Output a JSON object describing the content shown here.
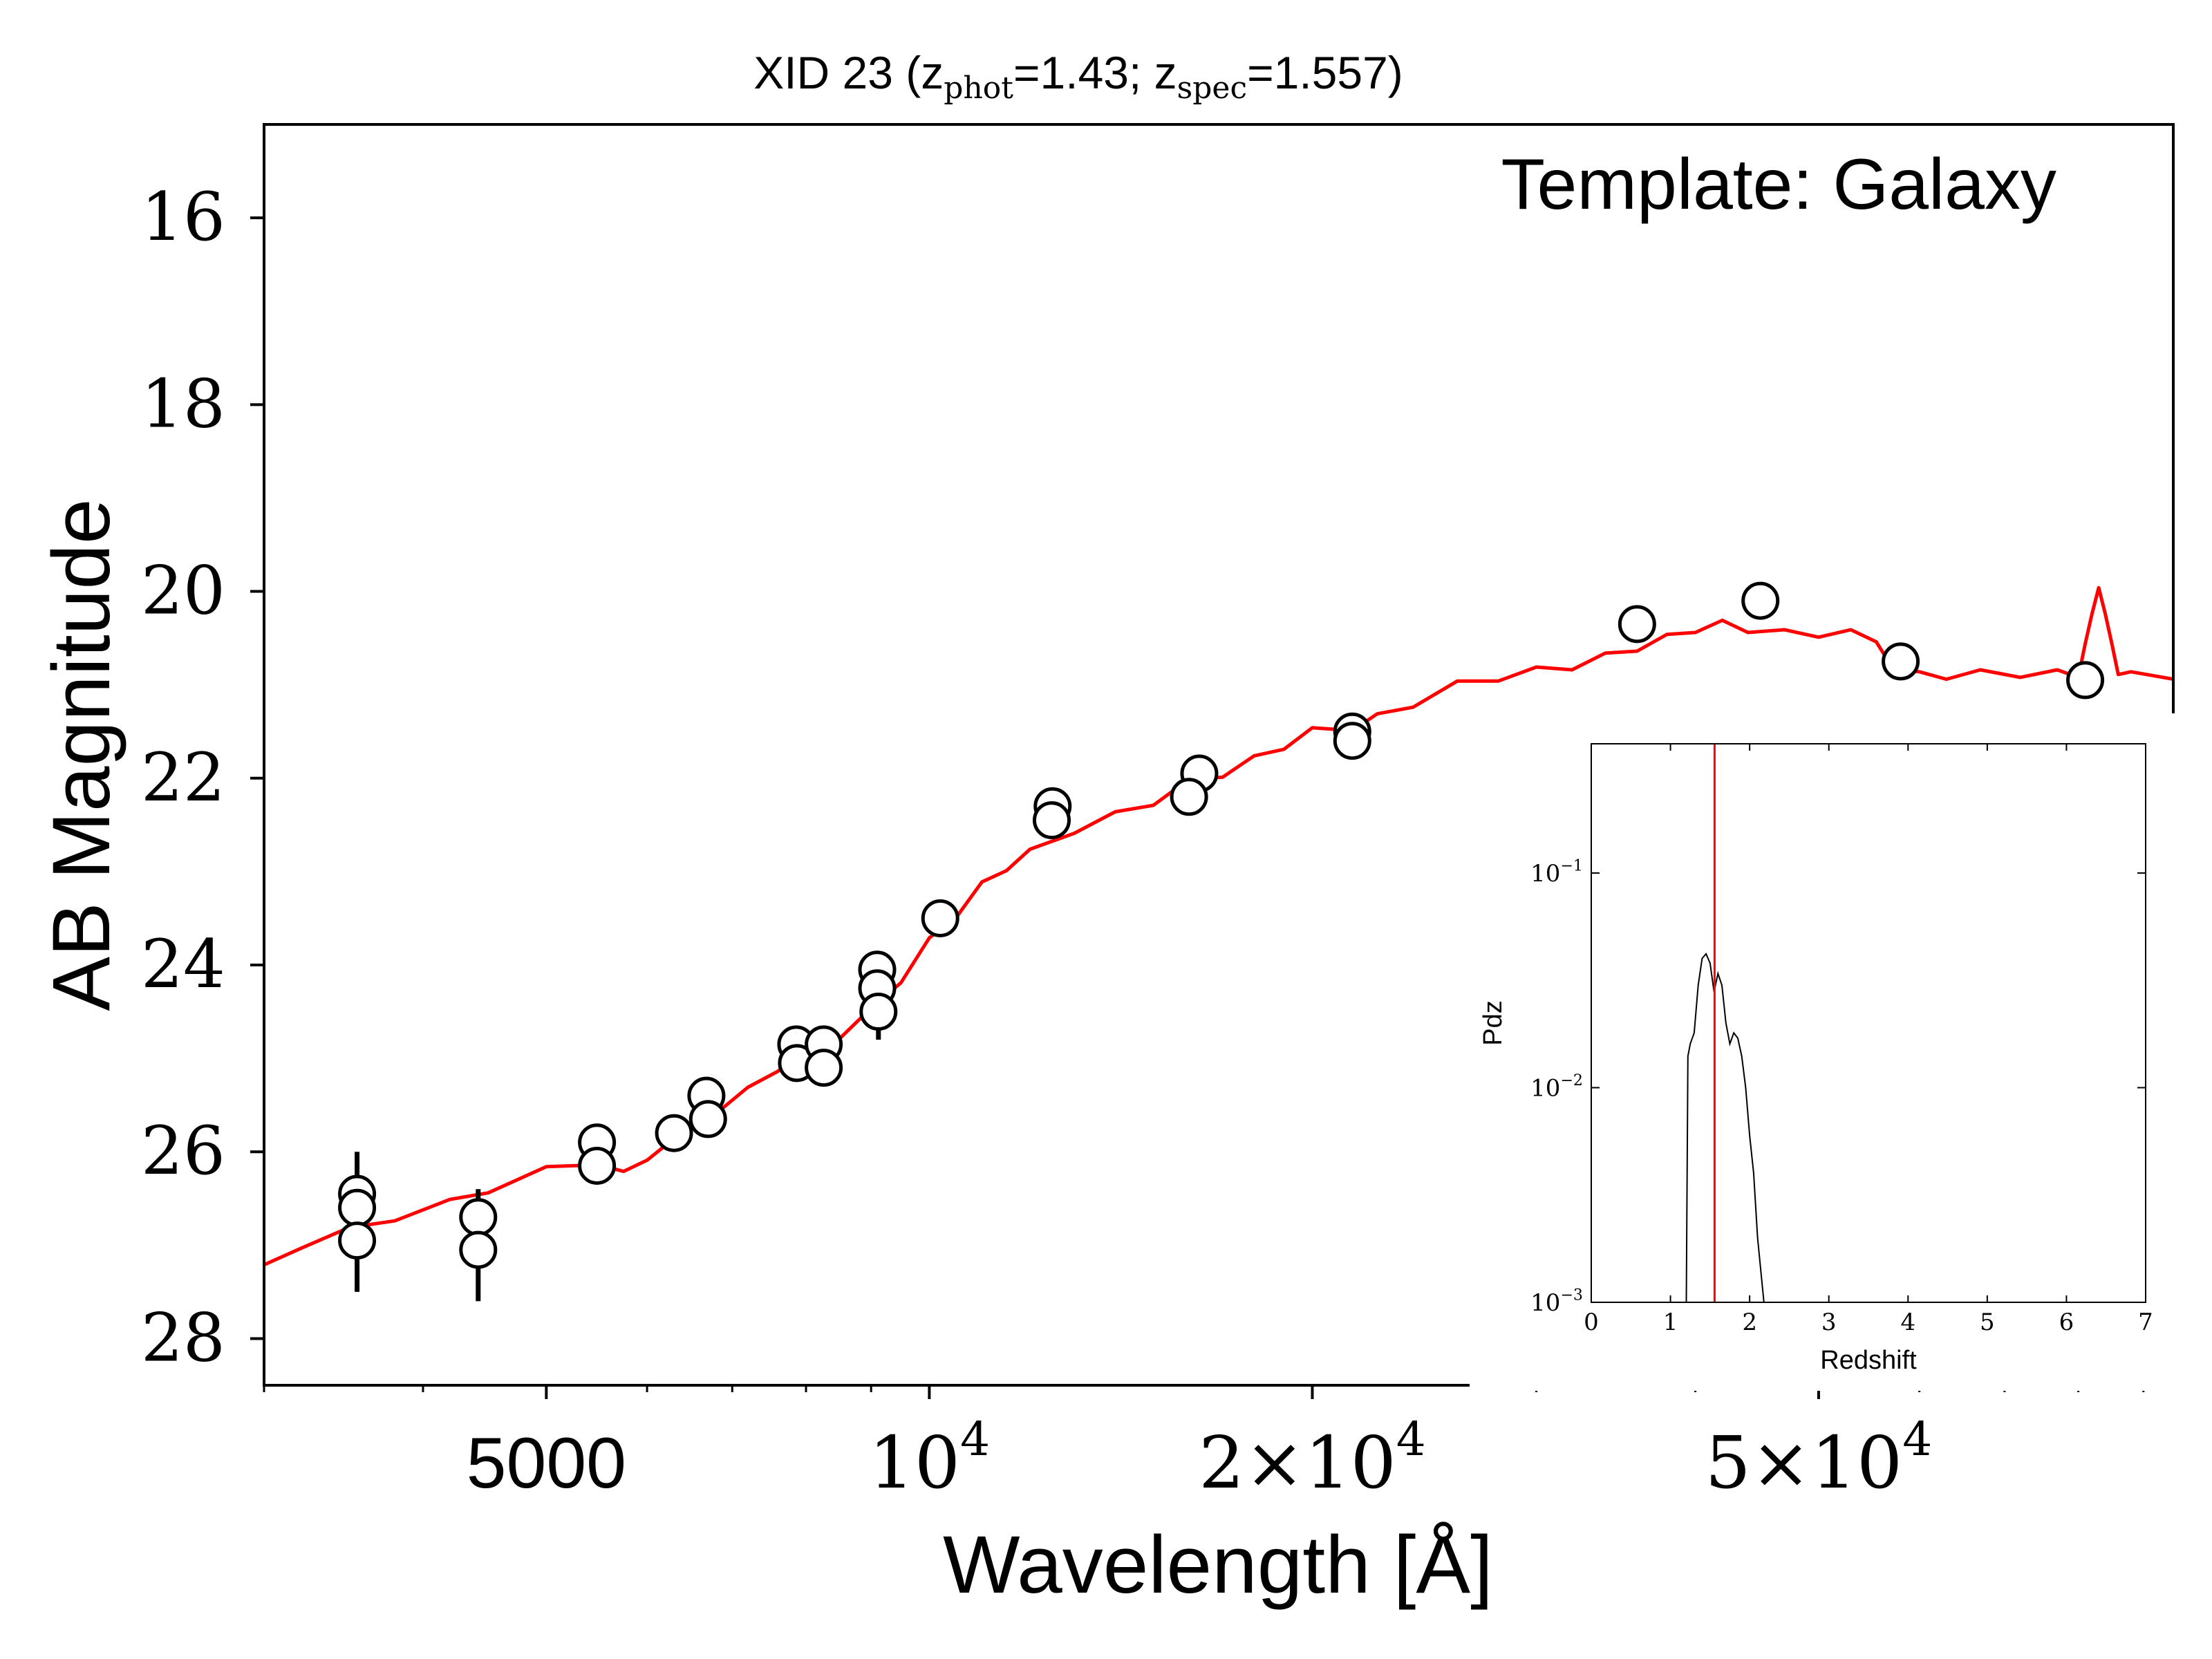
{
  "chart_data": [
    {
      "type": "scatter",
      "title": {
        "prefix": "XID 23 (z",
        "sub1": "phot",
        "mid": "=1.43; z",
        "sub2": "spec",
        "suffix": "=1.557)"
      },
      "annotation": "Template: Galaxy",
      "xlabel": "Wavelength [Å]",
      "ylabel": "AB Magnitude",
      "xscale": "log",
      "xlim": [
        3000,
        95000
      ],
      "ylim": [
        28.5,
        15.0
      ],
      "y_inverted": true,
      "yticks": [
        "16",
        "18",
        "20",
        "22",
        "24",
        "26",
        "28"
      ],
      "xticks": [
        {
          "value": 5000,
          "label": "5000"
        },
        {
          "value": 10000,
          "base": "10",
          "exp": "4"
        },
        {
          "value": 20000,
          "pre": "2×",
          "base": "10",
          "exp": "4"
        },
        {
          "value": 50000,
          "pre": "5×",
          "base": "10",
          "exp": "4"
        }
      ],
      "grid": false,
      "series": [
        {
          "kind": "photometry",
          "color": "#000000",
          "points": [
            {
              "x": 3550,
              "y": 26.45,
              "err": 0.45
            },
            {
              "x": 3550,
              "y": 26.6,
              "err": 0.3
            },
            {
              "x": 3550,
              "y": 26.95,
              "err": 0.55
            },
            {
              "x": 4420,
              "y": 26.7,
              "err": 0.3
            },
            {
              "x": 4420,
              "y": 27.05,
              "err": 0.55
            },
            {
              "x": 5480,
              "y": 25.9,
              "err": 0.15
            },
            {
              "x": 5480,
              "y": 26.15,
              "err": 0.15
            },
            {
              "x": 6300,
              "y": 25.8,
              "err": 0.1
            },
            {
              "x": 6680,
              "y": 25.4,
              "err": 0.1
            },
            {
              "x": 6700,
              "y": 25.65,
              "err": 0.1
            },
            {
              "x": 7860,
              "y": 24.85,
              "err": 0.1
            },
            {
              "x": 7870,
              "y": 25.05,
              "err": 0.1
            },
            {
              "x": 8260,
              "y": 24.85,
              "err": 0.1
            },
            {
              "x": 8260,
              "y": 25.1,
              "err": 0.1
            },
            {
              "x": 9100,
              "y": 24.05,
              "err": 0.15
            },
            {
              "x": 9100,
              "y": 24.25,
              "err": 0.15
            },
            {
              "x": 9120,
              "y": 24.5,
              "err": 0.3
            },
            {
              "x": 10200,
              "y": 23.5,
              "err": 0.05
            },
            {
              "x": 12500,
              "y": 22.3,
              "err": 0.05
            },
            {
              "x": 12480,
              "y": 22.45,
              "err": 0.05
            },
            {
              "x": 16300,
              "y": 21.95,
              "err": 0.05
            },
            {
              "x": 16000,
              "y": 22.2,
              "err": 0.05
            },
            {
              "x": 21500,
              "y": 21.5,
              "err": 0.05
            },
            {
              "x": 21500,
              "y": 21.6,
              "err": 0.05
            },
            {
              "x": 36000,
              "y": 20.35,
              "err": 0.05
            },
            {
              "x": 45000,
              "y": 20.1,
              "err": 0.05
            },
            {
              "x": 58000,
              "y": 20.75,
              "err": 0.05
            },
            {
              "x": 81000,
              "y": 20.95,
              "err": 0.05
            }
          ]
        },
        {
          "kind": "template",
          "color": "#ff0000",
          "points": [
            [
              3000,
              27.25
            ],
            [
              3200,
              27.0
            ],
            [
              3500,
              26.85
            ],
            [
              3800,
              26.7
            ],
            [
              4200,
              26.55
            ],
            [
              4500,
              26.4
            ],
            [
              5000,
              26.2
            ],
            [
              5500,
              26.1
            ],
            [
              5750,
              26.25
            ],
            [
              6000,
              26.05
            ],
            [
              6500,
              25.75
            ],
            [
              6800,
              25.55
            ],
            [
              7200,
              25.35
            ],
            [
              7600,
              25.1
            ],
            [
              8000,
              24.95
            ],
            [
              8500,
              24.75
            ],
            [
              9000,
              24.5
            ],
            [
              9500,
              24.15
            ],
            [
              10000,
              23.75
            ],
            [
              10500,
              23.45
            ],
            [
              11000,
              23.15
            ],
            [
              11500,
              22.95
            ],
            [
              12000,
              22.8
            ],
            [
              13000,
              22.55
            ],
            [
              14000,
              22.4
            ],
            [
              15000,
              22.25
            ],
            [
              16000,
              22.05
            ],
            [
              17000,
              21.95
            ],
            [
              18000,
              21.8
            ],
            [
              19000,
              21.65
            ],
            [
              20000,
              21.5
            ],
            [
              21500,
              21.45
            ],
            [
              22500,
              21.35
            ],
            [
              24000,
              21.2
            ],
            [
              26000,
              21.0
            ],
            [
              28000,
              20.92
            ],
            [
              30000,
              20.85
            ],
            [
              32000,
              20.8
            ],
            [
              34000,
              20.7
            ],
            [
              36000,
              20.6
            ],
            [
              38000,
              20.5
            ],
            [
              40000,
              20.4
            ],
            [
              42000,
              20.35
            ],
            [
              44000,
              20.4
            ],
            [
              47000,
              20.45
            ],
            [
              50000,
              20.45
            ],
            [
              53000,
              20.45
            ],
            [
              55500,
              20.5
            ],
            [
              56500,
              20.75
            ],
            [
              58000,
              20.8
            ],
            [
              60000,
              20.9
            ],
            [
              63000,
              20.9
            ],
            [
              67000,
              20.88
            ],
            [
              72000,
              20.88
            ],
            [
              77000,
              20.88
            ],
            [
              80000,
              20.88
            ],
            [
              81000,
              20.6
            ],
            [
              82000,
              20.2
            ],
            [
              83000,
              20.0
            ],
            [
              84000,
              20.2
            ],
            [
              85000,
              20.6
            ],
            [
              86000,
              20.85
            ],
            [
              88000,
              20.9
            ],
            [
              95000,
              20.9
            ]
          ]
        }
      ]
    },
    {
      "type": "line",
      "role": "inset",
      "xlabel": "Redshift",
      "ylabel": "Pdz",
      "xlim": [
        0,
        7
      ],
      "yscale": "log",
      "ylim": [
        0.001,
        0.4
      ],
      "xticks": [
        "0",
        "1",
        "2",
        "3",
        "4",
        "5",
        "6",
        "7"
      ],
      "yticks": [
        {
          "value": 0.1,
          "base": "10",
          "exp": "−1"
        },
        {
          "value": 0.01,
          "base": "10",
          "exp": "−2"
        },
        {
          "value": 0.001,
          "base": "10",
          "exp": "−3"
        }
      ],
      "vline": {
        "x": 1.557,
        "color": "#ff0000"
      },
      "series": [
        {
          "color": "#000000",
          "points": [
            [
              1.2,
              0.001
            ],
            [
              1.22,
              0.014
            ],
            [
              1.25,
              0.016
            ],
            [
              1.3,
              0.018
            ],
            [
              1.35,
              0.03
            ],
            [
              1.4,
              0.04
            ],
            [
              1.45,
              0.042
            ],
            [
              1.5,
              0.038
            ],
            [
              1.55,
              0.028
            ],
            [
              1.6,
              0.034
            ],
            [
              1.65,
              0.03
            ],
            [
              1.7,
              0.02
            ],
            [
              1.75,
              0.016
            ],
            [
              1.8,
              0.018
            ],
            [
              1.85,
              0.017
            ],
            [
              1.9,
              0.014
            ],
            [
              1.95,
              0.01
            ],
            [
              2.0,
              0.006
            ],
            [
              2.05,
              0.004
            ],
            [
              2.1,
              0.002
            ],
            [
              2.15,
              0.0013
            ],
            [
              2.18,
              0.001
            ]
          ]
        }
      ]
    }
  ]
}
